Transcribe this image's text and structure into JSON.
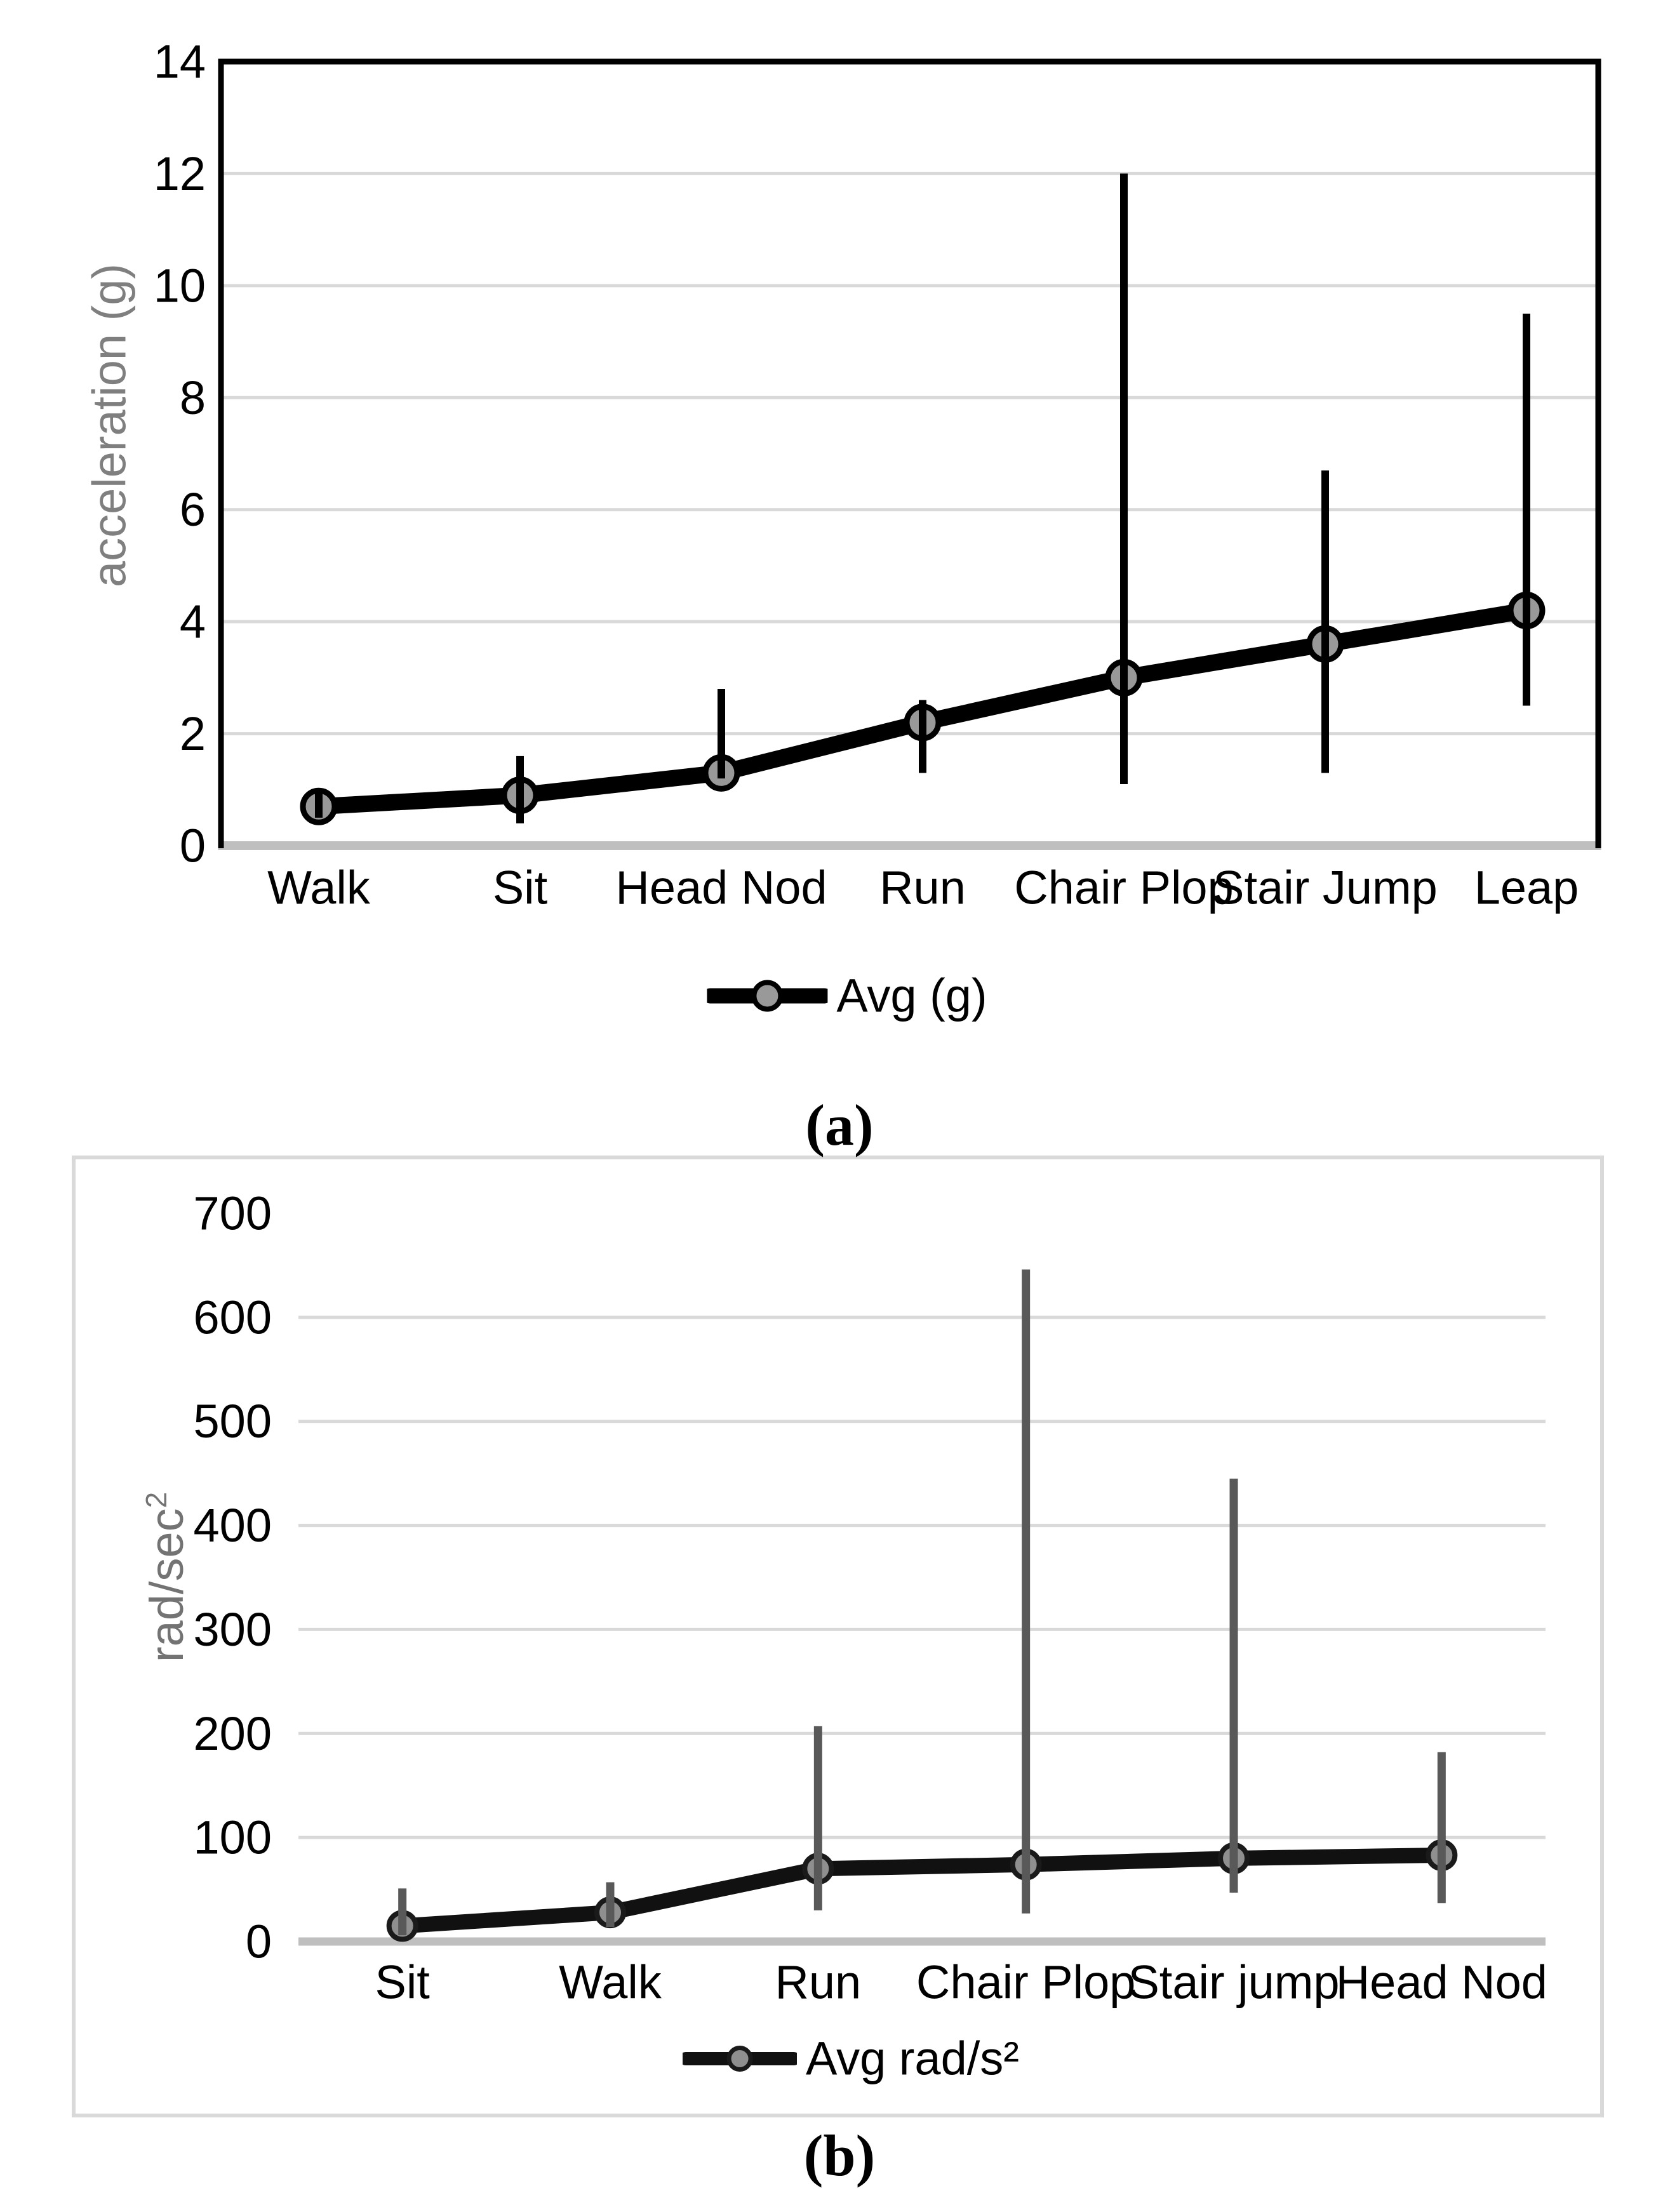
{
  "figure": {
    "panel_a_label": "(a)",
    "panel_b_label": "(b)"
  },
  "colors": {
    "grid": "#d9d9d9",
    "baseline": "#bfbfbf",
    "axis": "#000000",
    "panel_border": "#d9d9d9",
    "tick_text": "#000000",
    "ylabel_a": "#7f7f7f",
    "ylabel_b": "#737373",
    "series_a": "#000000",
    "marker_a": "#999999",
    "marker_a_stroke": "#000000",
    "error_a": "#000000",
    "series_b": "#111111",
    "marker_b": "#8f8f8f",
    "marker_b_stroke": "#1a1a1a",
    "error_b": "#595959"
  },
  "chart_data": [
    {
      "id": "a",
      "type": "line",
      "error_bars": true,
      "title": "",
      "xlabel": "",
      "ylabel": "acceleration (g)",
      "legend": "Avg (g)",
      "legend_position": "bottom",
      "grid": true,
      "ylim": [
        0,
        14
      ],
      "yticks": [
        0,
        2,
        4,
        6,
        8,
        10,
        12,
        14
      ],
      "categories": [
        "Walk",
        "Sit",
        "Head Nod",
        "Run",
        "Chair Plop",
        "Stair Jump",
        "Leap"
      ],
      "series": [
        {
          "name": "Avg (g)",
          "values": [
            0.7,
            0.9,
            1.3,
            2.2,
            3.0,
            3.6,
            4.2
          ],
          "err_low": [
            0.5,
            0.4,
            1.2,
            1.3,
            1.1,
            1.3,
            2.5
          ],
          "err_high": [
            0.95,
            1.6,
            2.8,
            2.6,
            12.0,
            6.7,
            9.5
          ]
        }
      ]
    },
    {
      "id": "b",
      "type": "line",
      "error_bars": true,
      "title": "",
      "xlabel": "",
      "ylabel": "rad/sec",
      "ylabel_sup": "2",
      "legend": "Avg rad/s²",
      "legend_position": "bottom",
      "grid": true,
      "ylim": [
        0,
        700
      ],
      "yticks": [
        0,
        100,
        200,
        300,
        400,
        500,
        600,
        700
      ],
      "categories": [
        "Sit",
        "Walk",
        "Run",
        "Chair Plop",
        "Stair jump",
        "Head Nod"
      ],
      "series": [
        {
          "name": "Avg rad/s²",
          "values": [
            15,
            28,
            70,
            74,
            80,
            83
          ],
          "err_low": [
            6,
            14,
            30,
            27,
            47,
            37
          ],
          "err_high": [
            51,
            57,
            207,
            646,
            445,
            182
          ]
        }
      ]
    }
  ]
}
